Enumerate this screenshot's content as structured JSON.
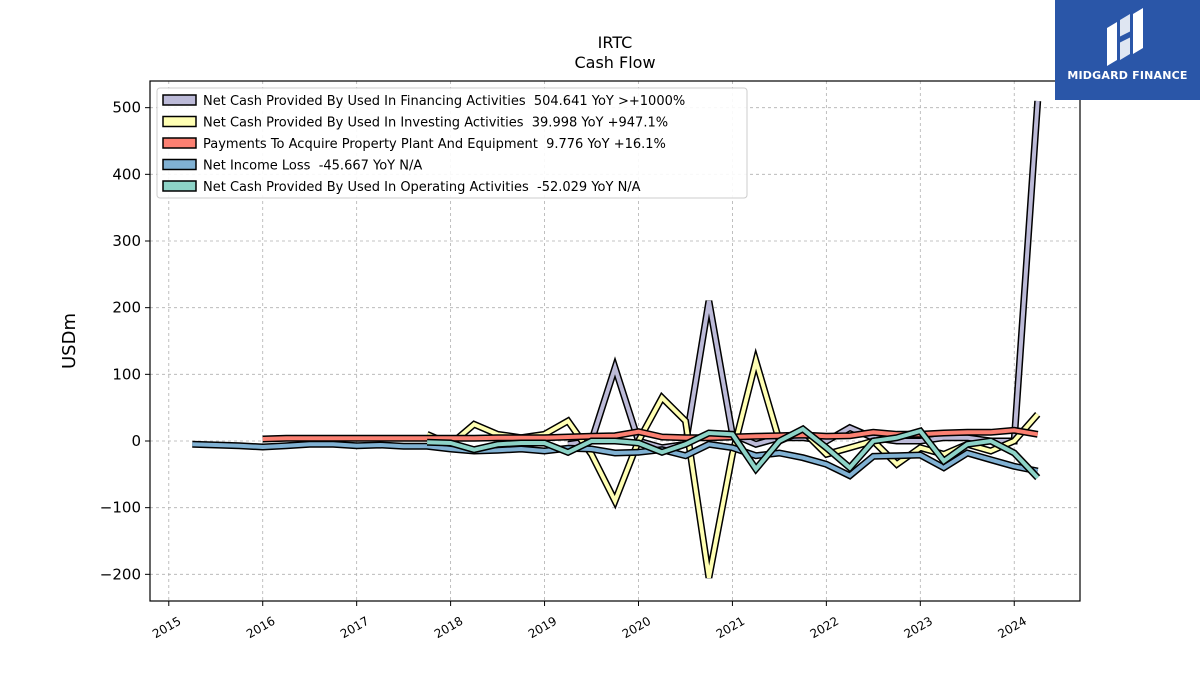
{
  "brand": {
    "name": "MIDGARD FINANCE",
    "bg_color": "#2a56a8"
  },
  "chart_data": {
    "type": "line",
    "title": "IRTC",
    "subtitle": "Cash Flow",
    "ylabel": "USDm",
    "xlabel": "",
    "xlim": [
      2014.8,
      2024.7
    ],
    "ylim": [
      -240,
      540
    ],
    "xticks": [
      2015,
      2016,
      2017,
      2018,
      2019,
      2020,
      2021,
      2022,
      2023,
      2024
    ],
    "xtick_labels": [
      "2015",
      "2016",
      "2017",
      "2018",
      "2019",
      "2020",
      "2021",
      "2022",
      "2023",
      "2024"
    ],
    "yticks": [
      -200,
      -100,
      0,
      100,
      200,
      300,
      400,
      500
    ],
    "ytick_labels": [
      "−200",
      "−100",
      "0",
      "100",
      "200",
      "300",
      "400",
      "500"
    ],
    "grid": true,
    "legend_position": "top-left",
    "series": [
      {
        "name": "Net Cash Provided By Used In Financing Activities",
        "legend": "Net Cash Provided By Used In Financing Activities  504.641 YoY >+1000%",
        "color": "#bcbad8",
        "x": [
          2019.25,
          2019.5,
          2019.75,
          2020.0,
          2020.25,
          2020.5,
          2020.75,
          2021.0,
          2021.25,
          2021.5,
          2021.75,
          2022.0,
          2022.25,
          2022.5,
          2022.75,
          2023.0,
          2023.25,
          2023.5,
          2023.75,
          2024.0,
          2024.25
        ],
        "y": [
          -5,
          0,
          110,
          0,
          -10,
          -5,
          210,
          10,
          -5,
          5,
          5,
          0,
          20,
          5,
          0,
          0,
          5,
          5,
          0,
          0,
          510
        ]
      },
      {
        "name": "Net Cash Provided By Used In Investing Activities",
        "legend": "Net Cash Provided By Used In Investing Activities  39.998 YoY +947.1%",
        "color": "#ffffb3",
        "x": [
          2017.75,
          2018.0,
          2018.25,
          2018.5,
          2018.75,
          2019.0,
          2019.25,
          2019.5,
          2019.75,
          2020.0,
          2020.25,
          2020.5,
          2020.75,
          2021.0,
          2021.25,
          2021.5,
          2021.75,
          2022.0,
          2022.25,
          2022.5,
          2022.75,
          2023.0,
          2023.25,
          2023.5,
          2023.75,
          2024.0,
          2024.25
        ],
        "y": [
          10,
          -5,
          25,
          10,
          5,
          10,
          30,
          -20,
          -90,
          0,
          65,
          30,
          -205,
          -20,
          120,
          0,
          15,
          -20,
          -10,
          0,
          -35,
          -10,
          -20,
          -5,
          -15,
          0,
          40
        ]
      },
      {
        "name": "Payments To Acquire Property Plant And Equipment",
        "legend": "Payments To Acquire Property Plant And Equipment  9.776 YoY +16.1%",
        "color": "#fb8072",
        "x": [
          2016.0,
          2016.25,
          2016.5,
          2016.75,
          2017.0,
          2017.25,
          2017.5,
          2017.75,
          2018.0,
          2018.25,
          2018.5,
          2018.75,
          2019.0,
          2019.25,
          2019.5,
          2019.75,
          2020.0,
          2020.25,
          2020.5,
          2020.75,
          2021.0,
          2021.25,
          2021.5,
          2021.75,
          2022.0,
          2022.25,
          2022.5,
          2022.75,
          2023.0,
          2023.25,
          2023.5,
          2023.75,
          2024.0,
          2024.25
        ],
        "y": [
          3,
          4,
          4,
          4,
          4,
          4,
          4,
          4,
          4,
          4,
          5,
          5,
          5,
          6,
          7,
          8,
          14,
          6,
          5,
          5,
          6,
          7,
          8,
          9,
          7,
          8,
          13,
          10,
          10,
          12,
          13,
          13,
          16,
          10
        ]
      },
      {
        "name": "Net Income Loss",
        "legend": "Net Income Loss  -45.667 YoY N/A",
        "color": "#80b1d3",
        "x": [
          2015.25,
          2015.5,
          2015.75,
          2016.0,
          2016.25,
          2016.5,
          2016.75,
          2017.0,
          2017.25,
          2017.5,
          2017.75,
          2018.0,
          2018.25,
          2018.5,
          2018.75,
          2019.0,
          2019.25,
          2019.5,
          2019.75,
          2020.0,
          2020.25,
          2020.5,
          2020.75,
          2021.0,
          2021.25,
          2021.5,
          2021.75,
          2022.0,
          2022.25,
          2022.5,
          2022.75,
          2023.0,
          2023.25,
          2023.5,
          2023.75,
          2024.0,
          2024.25
        ],
        "y": [
          -5,
          -6,
          -7,
          -9,
          -7,
          -5,
          -5,
          -7,
          -6,
          -8,
          -8,
          -12,
          -15,
          -14,
          -12,
          -15,
          -11,
          -12,
          -18,
          -17,
          -13,
          -22,
          -5,
          -10,
          -22,
          -18,
          -25,
          -35,
          -52,
          -23,
          -22,
          -21,
          -40,
          -18,
          -28,
          -38,
          -45
        ]
      },
      {
        "name": "Net Cash Provided By Used In Operating Activities",
        "legend": "Net Cash Provided By Used In Operating Activities  -52.029 YoY N/A",
        "color": "#8dd3c7",
        "x": [
          2017.75,
          2018.0,
          2018.25,
          2018.5,
          2018.75,
          2019.0,
          2019.25,
          2019.5,
          2019.75,
          2020.0,
          2020.25,
          2020.5,
          2020.75,
          2021.0,
          2021.25,
          2021.5,
          2021.75,
          2022.0,
          2022.25,
          2022.5,
          2022.75,
          2023.0,
          2023.25,
          2023.5,
          2023.75,
          2024.0,
          2024.25
        ],
        "y": [
          -2,
          -3,
          -13,
          -5,
          -3,
          -3,
          -17,
          0,
          0,
          -3,
          -17,
          -5,
          12,
          10,
          -42,
          0,
          18,
          -10,
          -40,
          0,
          5,
          15,
          -30,
          -5,
          0,
          -18,
          -55
        ]
      }
    ]
  }
}
